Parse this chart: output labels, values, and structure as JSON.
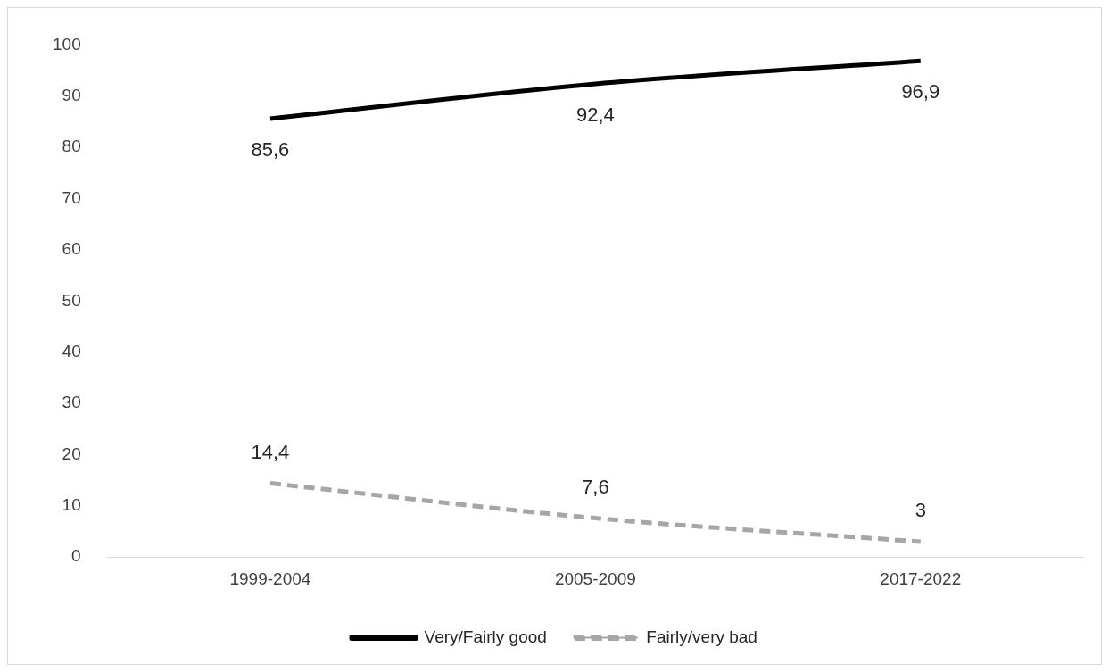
{
  "chart_data": {
    "type": "line",
    "categories": [
      "1999-2004",
      "2005-2009",
      "2017-2022"
    ],
    "series": [
      {
        "name": "Very/Fairly good",
        "color": "#000000",
        "values": [
          85.6,
          92.4,
          96.9
        ],
        "value_labels": [
          "85,6",
          "92,4",
          "96,9"
        ],
        "line_style": "solid"
      },
      {
        "name": "Fairly/very bad",
        "color": "#a6a6a6",
        "values": [
          14.4,
          7.6,
          3
        ],
        "value_labels": [
          "14,4",
          "7,6",
          "3"
        ],
        "line_style": "dashed"
      }
    ],
    "ylim": [
      0,
      100
    ],
    "yticks": [
      0,
      10,
      20,
      30,
      40,
      50,
      60,
      70,
      80,
      90,
      100
    ],
    "grid": false,
    "legend": "bottom",
    "marker": "none"
  }
}
